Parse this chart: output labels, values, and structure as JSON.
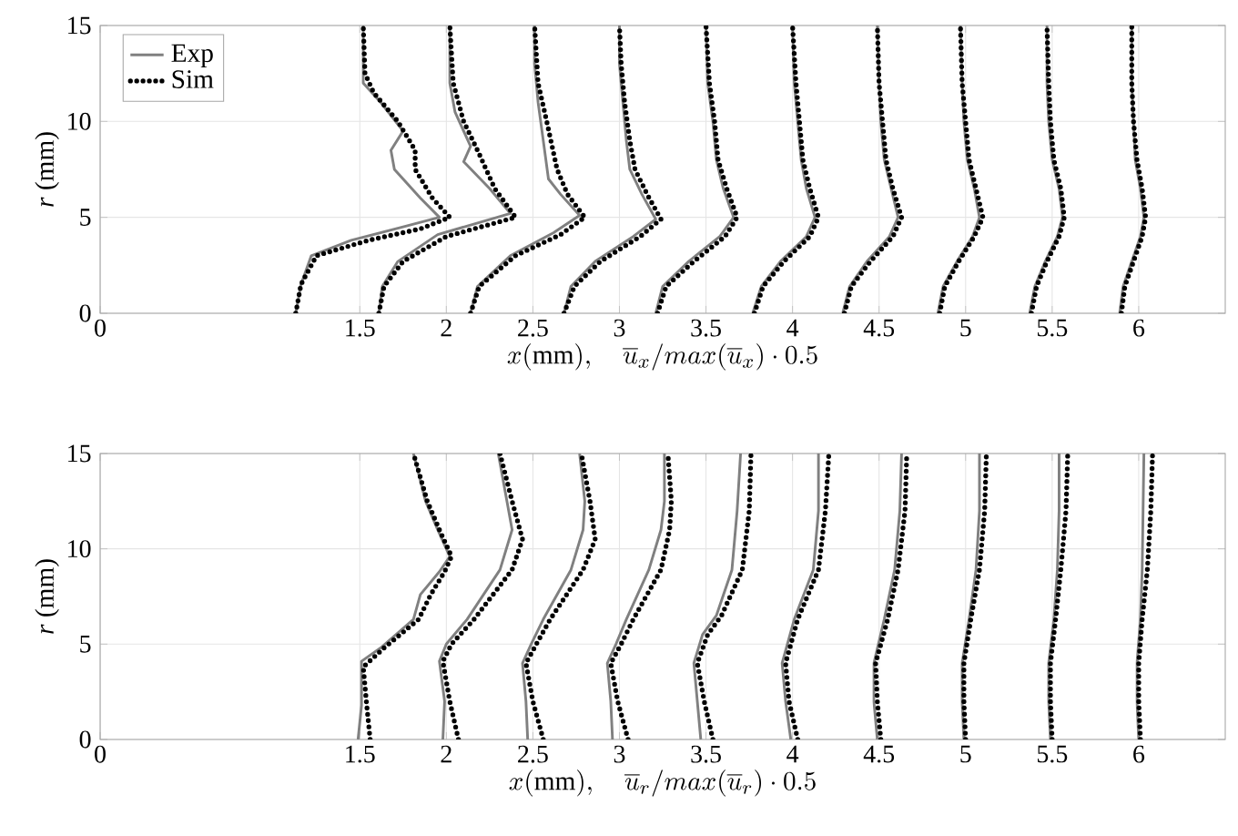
{
  "chart_data": [
    {
      "type": "line",
      "xlabel": "x(\\mathrm{mm}),\\quad \\overline{u}_x/max(\\overline{u}_x)\\cdot 0.5",
      "ylabel": "*r* (mm)",
      "xlim": [
        0,
        6.5
      ],
      "ylim": [
        0,
        15
      ],
      "xticks": [
        0,
        1.5,
        2,
        2.5,
        3,
        3.5,
        4,
        4.5,
        5,
        5.5,
        6
      ],
      "yticks": [
        0,
        5,
        10,
        15
      ],
      "grid": true,
      "legend": "top left",
      "series": [
        {
          "name": "Exp",
          "color": "#808080",
          "line_style": "solid",
          "x": [
            1.13,
            1.16,
            1.22,
            1.45,
            1.75,
            1.96,
            1.85,
            1.7,
            1.68,
            1.75,
            1.62,
            1.52,
            1.52
          ],
          "values": [
            0,
            1.5,
            3,
            3.8,
            4.5,
            5,
            6,
            7.5,
            8.5,
            9.5,
            11,
            12,
            15
          ]
        },
        {
          "name": "Sim",
          "color": "#000000",
          "line_style": "dotted",
          "x": [
            1.13,
            1.16,
            1.25,
            1.55,
            1.85,
            2.02,
            1.92,
            1.82,
            1.82,
            1.72,
            1.58,
            1.53,
            1.52
          ],
          "values": [
            0,
            1.5,
            3,
            3.8,
            4.4,
            5,
            6,
            7.5,
            8.5,
            10,
            11.5,
            12.5,
            15
          ]
        },
        {
          "color": "#808080",
          "line_style": "solid",
          "x": [
            1.61,
            1.63,
            1.72,
            1.95,
            2.37,
            2.25,
            2.1,
            2.14,
            2.05,
            2.02,
            2.02
          ],
          "values": [
            0,
            1.4,
            2.7,
            4.1,
            5.2,
            6.5,
            7.9,
            8.7,
            10.5,
            12,
            15
          ]
        },
        {
          "color": "#000000",
          "line_style": "dotted",
          "x": [
            1.61,
            1.64,
            1.75,
            2.0,
            2.4,
            2.28,
            2.19,
            2.1,
            2.04,
            2.02
          ],
          "values": [
            0,
            1.4,
            2.7,
            4.0,
            5.0,
            6.5,
            8.3,
            10,
            12,
            15
          ]
        },
        {
          "color": "#808080",
          "line_style": "solid",
          "x": [
            2.14,
            2.18,
            2.37,
            2.62,
            2.77,
            2.66,
            2.59,
            2.56,
            2.53,
            2.51,
            2.51
          ],
          "values": [
            0,
            1.4,
            3,
            4.2,
            5.1,
            6.2,
            7,
            9,
            11,
            13,
            15
          ]
        },
        {
          "color": "#000000",
          "line_style": "dotted",
          "x": [
            2.14,
            2.19,
            2.4,
            2.66,
            2.8,
            2.7,
            2.64,
            2.58,
            2.53,
            2.51
          ],
          "values": [
            0,
            1.4,
            3,
            4.1,
            5.0,
            6.2,
            7.5,
            10,
            12,
            15
          ]
        },
        {
          "color": "#808080",
          "line_style": "solid",
          "x": [
            2.68,
            2.72,
            2.86,
            3.08,
            3.21,
            3.13,
            3.06,
            3.04,
            3.02,
            3.0,
            3.0
          ],
          "values": [
            0,
            1.4,
            2.7,
            4,
            4.9,
            6.2,
            7.5,
            9,
            11,
            13,
            15
          ]
        },
        {
          "color": "#000000",
          "line_style": "dotted",
          "x": [
            2.68,
            2.74,
            2.89,
            3.12,
            3.24,
            3.16,
            3.09,
            3.06,
            3.03,
            3.01,
            3.0
          ],
          "values": [
            0,
            1.4,
            2.7,
            4,
            4.9,
            6.2,
            7.5,
            9,
            11,
            13,
            15
          ]
        },
        {
          "color": "#808080",
          "line_style": "solid",
          "x": [
            3.21,
            3.25,
            3.4,
            3.58,
            3.66,
            3.6,
            3.56,
            3.54,
            3.51,
            3.5
          ],
          "values": [
            0,
            1.4,
            2.7,
            4,
            5,
            6.5,
            8,
            10,
            12,
            15
          ]
        },
        {
          "color": "#000000",
          "line_style": "dotted",
          "x": [
            3.22,
            3.27,
            3.43,
            3.61,
            3.68,
            3.62,
            3.57,
            3.55,
            3.52,
            3.5
          ],
          "values": [
            0,
            1.4,
            2.7,
            4,
            5,
            6.5,
            8,
            10,
            12,
            15
          ]
        },
        {
          "color": "#808080",
          "line_style": "solid",
          "x": [
            3.77,
            3.82,
            3.93,
            4.08,
            4.13,
            4.08,
            4.05,
            4.03,
            4.01,
            4.0
          ],
          "values": [
            0,
            1.4,
            2.7,
            4,
            5,
            6.5,
            8,
            10,
            12,
            15
          ]
        },
        {
          "color": "#000000",
          "line_style": "dotted",
          "x": [
            3.78,
            3.83,
            3.95,
            4.1,
            4.15,
            4.1,
            4.06,
            4.04,
            4.02,
            4.0
          ],
          "values": [
            0,
            1.4,
            2.7,
            4,
            5,
            6.5,
            8,
            10,
            12,
            15
          ]
        },
        {
          "color": "#808080",
          "line_style": "solid",
          "x": [
            4.29,
            4.33,
            4.43,
            4.56,
            4.61,
            4.57,
            4.53,
            4.51,
            4.5,
            4.49
          ],
          "values": [
            0,
            1.4,
            2.7,
            4,
            5,
            6.5,
            8,
            10,
            12,
            15
          ]
        },
        {
          "color": "#000000",
          "line_style": "dotted",
          "x": [
            4.3,
            4.34,
            4.45,
            4.58,
            4.63,
            4.58,
            4.54,
            4.52,
            4.5,
            4.49
          ],
          "values": [
            0,
            1.4,
            2.7,
            4,
            5,
            6.5,
            8,
            10,
            12,
            15
          ]
        },
        {
          "color": "#808080",
          "line_style": "solid",
          "x": [
            4.84,
            4.87,
            4.95,
            5.04,
            5.08,
            5.05,
            5.01,
            4.99,
            4.98,
            4.97
          ],
          "values": [
            0,
            1.4,
            2.7,
            4,
            5,
            6.5,
            8,
            10,
            12,
            15
          ]
        },
        {
          "color": "#000000",
          "line_style": "dotted",
          "x": [
            4.85,
            4.88,
            4.96,
            5.05,
            5.1,
            5.06,
            5.02,
            5.0,
            4.98,
            4.97
          ],
          "values": [
            0,
            1.4,
            2.7,
            4,
            5,
            6.5,
            8,
            10,
            12,
            15
          ]
        },
        {
          "color": "#808080",
          "line_style": "solid",
          "x": [
            5.37,
            5.4,
            5.46,
            5.53,
            5.56,
            5.54,
            5.5,
            5.48,
            5.47,
            5.47
          ],
          "values": [
            0,
            1.4,
            2.7,
            4,
            5,
            6.5,
            8,
            10,
            12,
            15
          ]
        },
        {
          "color": "#000000",
          "line_style": "dotted",
          "x": [
            5.38,
            5.41,
            5.47,
            5.54,
            5.57,
            5.55,
            5.51,
            5.49,
            5.48,
            5.47
          ],
          "values": [
            0,
            1.4,
            2.7,
            4,
            5,
            6.5,
            8,
            10,
            12,
            15
          ]
        },
        {
          "color": "#808080",
          "line_style": "solid",
          "x": [
            5.89,
            5.91,
            5.96,
            6.01,
            6.03,
            6.01,
            5.98,
            5.97,
            5.96,
            5.96
          ],
          "values": [
            0,
            1.4,
            2.7,
            4,
            5,
            6.5,
            8,
            10,
            12,
            15
          ]
        },
        {
          "color": "#000000",
          "line_style": "dotted",
          "x": [
            5.9,
            5.92,
            5.97,
            6.02,
            6.04,
            6.02,
            5.99,
            5.97,
            5.96,
            5.96
          ],
          "values": [
            0,
            1.4,
            2.7,
            4,
            5,
            6.5,
            8,
            10,
            12,
            15
          ]
        }
      ]
    },
    {
      "type": "line",
      "xlabel": "x(\\mathrm{mm}),\\quad \\overline{u}_r/max(\\overline{u}_r)\\cdot 0.5",
      "ylabel": "*r* (mm)",
      "xlim": [
        0,
        6.5
      ],
      "ylim": [
        0,
        15
      ],
      "xticks": [
        0,
        1.5,
        2,
        2.5,
        3,
        3.5,
        4,
        4.5,
        5,
        5.5,
        6
      ],
      "yticks": [
        0,
        5,
        10,
        15
      ],
      "grid": true,
      "series": [
        {
          "color": "#808080",
          "line_style": "solid",
          "x": [
            1.49,
            1.51,
            1.51,
            1.62,
            1.81,
            1.85,
            1.96,
            2.02,
            1.95,
            1.88,
            1.81
          ],
          "values": [
            0,
            1.8,
            4.1,
            4.8,
            6.3,
            7.6,
            8.8,
            9.6,
            11,
            12.5,
            15
          ]
        },
        {
          "color": "#000000",
          "line_style": "dotted",
          "x": [
            1.56,
            1.54,
            1.52,
            1.64,
            1.84,
            1.91,
            1.99,
            2.03,
            1.96,
            1.89,
            1.81
          ],
          "values": [
            0,
            1.8,
            3.8,
            4.8,
            6.3,
            7.6,
            8.8,
            9.6,
            11,
            12.5,
            15
          ]
        },
        {
          "color": "#808080",
          "line_style": "solid",
          "x": [
            1.98,
            1.99,
            1.96,
            2.0,
            2.12,
            2.31,
            2.38,
            2.35,
            2.3
          ],
          "values": [
            0,
            2,
            4.1,
            5,
            6.3,
            8.9,
            11,
            12.5,
            15
          ]
        },
        {
          "color": "#000000",
          "line_style": "dotted",
          "x": [
            2.07,
            2.02,
            1.98,
            2.03,
            2.16,
            2.38,
            2.44,
            2.38,
            2.31
          ],
          "values": [
            0,
            2,
            4.1,
            5,
            6.3,
            8.9,
            10.5,
            12.5,
            15
          ]
        },
        {
          "color": "#808080",
          "line_style": "solid",
          "x": [
            2.47,
            2.46,
            2.44,
            2.49,
            2.56,
            2.72,
            2.79,
            2.8,
            2.77
          ],
          "values": [
            0,
            2,
            4,
            5,
            6.3,
            8.9,
            11,
            12.5,
            15
          ]
        },
        {
          "color": "#000000",
          "line_style": "dotted",
          "x": [
            2.56,
            2.5,
            2.46,
            2.52,
            2.6,
            2.79,
            2.86,
            2.83,
            2.78
          ],
          "values": [
            0,
            2,
            4,
            5,
            6.3,
            8.9,
            10.5,
            12.5,
            15
          ]
        },
        {
          "color": "#808080",
          "line_style": "solid",
          "x": [
            2.96,
            2.95,
            2.93,
            2.98,
            3.04,
            3.17,
            3.24,
            3.26,
            3.26
          ],
          "values": [
            0,
            2,
            4,
            5,
            6.3,
            8.9,
            11,
            12.5,
            15
          ]
        },
        {
          "color": "#000000",
          "line_style": "dotted",
          "x": [
            3.05,
            2.99,
            2.95,
            3.01,
            3.08,
            3.24,
            3.29,
            3.3,
            3.28
          ],
          "values": [
            0,
            2,
            4,
            5,
            6.3,
            8.9,
            11,
            12.5,
            15
          ]
        },
        {
          "color": "#808080",
          "line_style": "solid",
          "x": [
            3.47,
            3.45,
            3.43,
            3.48,
            3.56,
            3.65,
            3.68,
            3.7
          ],
          "values": [
            0,
            2,
            4,
            5.5,
            6.5,
            8.9,
            12,
            15
          ]
        },
        {
          "color": "#000000",
          "line_style": "dotted",
          "x": [
            3.54,
            3.49,
            3.45,
            3.51,
            3.59,
            3.71,
            3.75,
            3.76
          ],
          "values": [
            0,
            2,
            4,
            5.5,
            6.5,
            8.9,
            12,
            15
          ]
        },
        {
          "color": "#808080",
          "line_style": "solid",
          "x": [
            3.99,
            3.96,
            3.94,
            4.01,
            4.12,
            4.15,
            4.15
          ],
          "values": [
            0,
            2,
            4,
            6.3,
            8.9,
            12,
            15
          ]
        },
        {
          "color": "#000000",
          "line_style": "dotted",
          "x": [
            4.03,
            3.98,
            3.96,
            4.03,
            4.15,
            4.19,
            4.21
          ],
          "values": [
            0,
            2,
            4,
            6.3,
            8.9,
            12,
            15
          ]
        },
        {
          "color": "#808080",
          "line_style": "solid",
          "x": [
            4.49,
            4.47,
            4.47,
            4.53,
            4.59,
            4.62,
            4.63
          ],
          "values": [
            0,
            2,
            4,
            6.3,
            8.9,
            12,
            15
          ]
        },
        {
          "color": "#000000",
          "line_style": "dotted",
          "x": [
            4.51,
            4.49,
            4.48,
            4.55,
            4.61,
            4.65,
            4.66
          ],
          "values": [
            0,
            2,
            4,
            6.3,
            8.9,
            12,
            15
          ]
        },
        {
          "color": "#808080",
          "line_style": "solid",
          "x": [
            4.99,
            4.98,
            4.98,
            5.02,
            5.06,
            5.08,
            5.08
          ],
          "values": [
            0,
            2,
            4,
            6.3,
            8.9,
            12,
            15
          ]
        },
        {
          "color": "#000000",
          "line_style": "dotted",
          "x": [
            5.0,
            4.99,
            4.99,
            5.03,
            5.08,
            5.11,
            5.12
          ],
          "values": [
            0,
            2,
            4,
            6.3,
            8.9,
            12,
            15
          ]
        },
        {
          "color": "#808080",
          "line_style": "solid",
          "x": [
            5.49,
            5.48,
            5.48,
            5.51,
            5.53,
            5.54,
            5.54
          ],
          "values": [
            0,
            2,
            4,
            6.3,
            8.9,
            12,
            15
          ]
        },
        {
          "color": "#000000",
          "line_style": "dotted",
          "x": [
            5.5,
            5.49,
            5.49,
            5.52,
            5.55,
            5.58,
            5.59
          ],
          "values": [
            0,
            2,
            4,
            6.3,
            8.9,
            12,
            15
          ]
        },
        {
          "color": "#808080",
          "line_style": "solid",
          "x": [
            6.0,
            5.99,
            5.99,
            6.01,
            6.02,
            6.03
          ],
          "values": [
            0,
            2,
            4,
            6.3,
            8.9,
            15
          ]
        },
        {
          "color": "#000000",
          "line_style": "dotted",
          "x": [
            6.01,
            6.0,
            6.0,
            6.02,
            6.05,
            6.07,
            6.08
          ],
          "values": [
            0,
            2,
            4,
            6.3,
            8.9,
            12,
            15
          ]
        }
      ]
    }
  ]
}
